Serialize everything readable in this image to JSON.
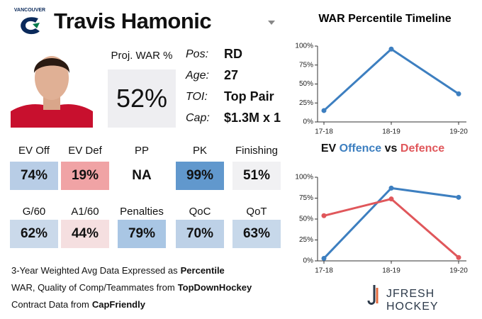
{
  "header": {
    "team": "VANCOUVER",
    "player": "Travis Hamonic"
  },
  "proj_war": {
    "label": "Proj. WAR %",
    "value": "52%"
  },
  "info": [
    {
      "label": "Pos:",
      "value": "RD"
    },
    {
      "label": "Age:",
      "value": "27"
    },
    {
      "label": "TOI:",
      "value": "Top Pair"
    },
    {
      "label": "Cap:",
      "value": "$1.3M x 1"
    }
  ],
  "stats": [
    {
      "label": "EV Off",
      "value": "74%",
      "color": "#b8cde6"
    },
    {
      "label": "EV Def",
      "value": "19%",
      "color": "#f0a3a5"
    },
    {
      "label": "PP",
      "value": "NA",
      "color": "#ffffff"
    },
    {
      "label": "PK",
      "value": "99%",
      "color": "#6198cd"
    },
    {
      "label": "Finishing",
      "value": "51%",
      "color": "#f1f1f3"
    },
    {
      "label": "G/60",
      "value": "62%",
      "color": "#cad9ea"
    },
    {
      "label": "A1/60",
      "value": "44%",
      "color": "#f5dfe0"
    },
    {
      "label": "Penalties",
      "value": "79%",
      "color": "#a9c6e4"
    },
    {
      "label": "QoC",
      "value": "70%",
      "color": "#bdd1e7"
    },
    {
      "label": "QoT",
      "value": "63%",
      "color": "#c7d8ea"
    }
  ],
  "footer": [
    {
      "text": "3-Year Weighted Avg Data Expressed as",
      "bold": "Percentile"
    },
    {
      "text": "WAR, Quality of Comp/Teammates from",
      "bold": "TopDownHockey"
    },
    {
      "text": "Contract Data from",
      "bold": "CapFriendly"
    }
  ],
  "brand": "JFRESH HOCKEY",
  "chart_data": [
    {
      "type": "line",
      "title": "WAR Percentile Timeline",
      "categories": [
        "17-18",
        "18-19",
        "19-20"
      ],
      "series": [
        {
          "color": "#3d7fc0",
          "values": [
            15,
            96,
            37
          ]
        }
      ],
      "ylim": [
        0,
        100
      ],
      "yticks": [
        {
          "value": 0,
          "label": "0%"
        },
        {
          "value": 25,
          "label": "25%"
        },
        {
          "value": 50,
          "label": "50%"
        },
        {
          "value": 75,
          "label": "75%"
        },
        {
          "value": 100,
          "label": "100%"
        }
      ]
    },
    {
      "type": "line",
      "title_prefix": "EV",
      "title_joiner": "vs",
      "categories": [
        "17-18",
        "18-19",
        "19-20"
      ],
      "series": [
        {
          "name": "Offence",
          "color": "#3d7fc0",
          "values": [
            3,
            87,
            76
          ]
        },
        {
          "name": "Defence",
          "color": "#e0575b",
          "values": [
            54,
            74,
            4
          ]
        }
      ],
      "ylim": [
        0,
        100
      ],
      "yticks": [
        {
          "value": 0,
          "label": "0%"
        },
        {
          "value": 25,
          "label": "25%"
        },
        {
          "value": 50,
          "label": "50%"
        },
        {
          "value": 75,
          "label": "75%"
        },
        {
          "value": 100,
          "label": "100%"
        }
      ]
    }
  ]
}
